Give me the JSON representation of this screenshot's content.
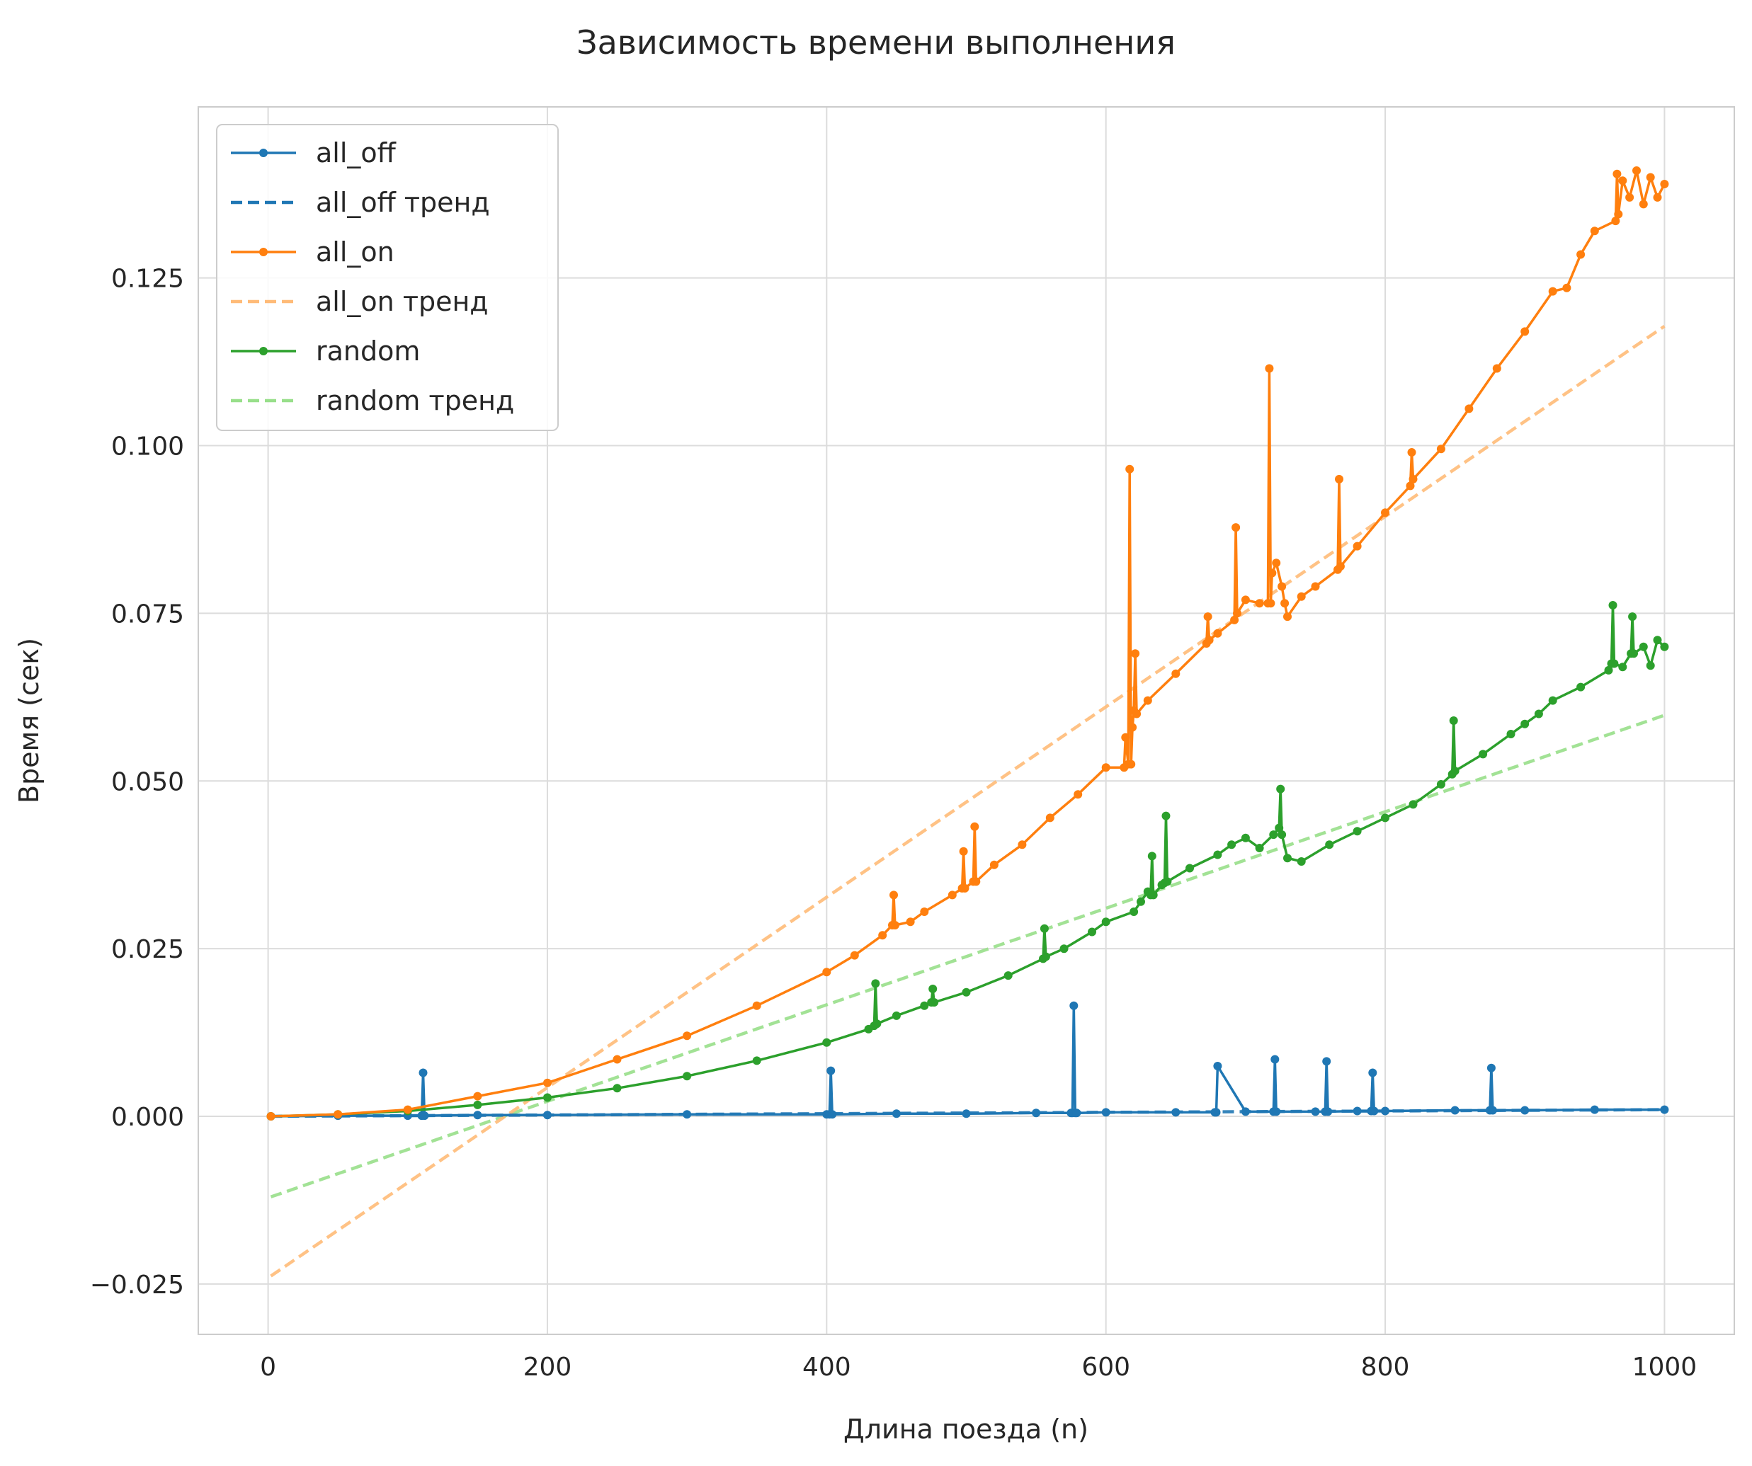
{
  "chart_data": {
    "type": "line",
    "title": "Зависимость времени выполнения",
    "xlabel": "Длина поезда (n)",
    "ylabel": "Время (сек)",
    "xlim": [
      -50,
      1050
    ],
    "ylim": [
      -0.0325,
      0.1505
    ],
    "xticks": [
      0,
      200,
      400,
      600,
      800,
      1000
    ],
    "xtick_labels": [
      "0",
      "200",
      "400",
      "600",
      "800",
      "1000"
    ],
    "yticks": [
      -0.025,
      0,
      0.025,
      0.05,
      0.075,
      0.1,
      0.125
    ],
    "ytick_labels": [
      "−0.025",
      "0.000",
      "0.025",
      "0.050",
      "0.075",
      "0.100",
      "0.125"
    ],
    "grid": true,
    "legend_position": "upper-left",
    "legend": [
      "all_off",
      "all_off тренд",
      "all_on",
      "all_on тренд",
      "random",
      "random тренд"
    ],
    "series": [
      {
        "name": "all_off",
        "color": "#1f77b4",
        "style": "line-marker",
        "x": [
          2,
          50,
          100,
          110,
          111,
          112,
          150,
          200,
          300,
          400,
          402,
          403,
          404,
          450,
          500,
          550,
          575,
          576,
          577,
          578,
          579,
          600,
          650,
          678,
          679,
          680,
          700,
          720,
          721,
          722,
          750,
          757,
          758,
          759,
          780,
          790,
          791,
          792,
          800,
          850,
          875,
          876,
          877,
          900,
          950,
          1000
        ],
        "y": [
          0.0,
          0.0001,
          0.0001,
          0.0001,
          0.0065,
          0.0001,
          0.0002,
          0.0002,
          0.0003,
          0.0003,
          0.0003,
          0.0068,
          0.0003,
          0.0004,
          0.0004,
          0.0005,
          0.0005,
          0.0005,
          0.0165,
          0.0005,
          0.0005,
          0.0006,
          0.0006,
          0.0006,
          0.0006,
          0.0075,
          0.0007,
          0.0007,
          0.0085,
          0.0007,
          0.0007,
          0.0007,
          0.0082,
          0.0007,
          0.0008,
          0.0008,
          0.0065,
          0.0008,
          0.0008,
          0.0009,
          0.0009,
          0.0072,
          0.0009,
          0.0009,
          0.001,
          0.001
        ]
      },
      {
        "name": "all_off тренд",
        "color": "#1f77b4",
        "style": "dashed",
        "x": [
          2,
          1000
        ],
        "y": [
          0.0,
          0.001
        ]
      },
      {
        "name": "all_on",
        "color": "#ff7f0e",
        "style": "line-marker",
        "x": [
          2,
          50,
          100,
          150,
          200,
          250,
          300,
          350,
          400,
          420,
          440,
          447,
          448,
          449,
          460,
          470,
          490,
          497,
          498,
          499,
          505,
          506,
          507,
          520,
          540,
          560,
          580,
          600,
          613,
          614,
          616,
          617,
          618,
          619,
          620,
          621,
          622,
          630,
          650,
          672,
          673,
          674,
          680,
          692,
          693,
          694,
          700,
          710,
          716,
          717,
          718,
          719,
          722,
          726,
          728,
          730,
          740,
          750,
          766,
          767,
          768,
          780,
          800,
          818,
          819,
          820,
          840,
          860,
          880,
          900,
          920,
          930,
          940,
          950,
          965,
          966,
          967,
          970,
          975,
          980,
          985,
          990,
          995,
          1000
        ],
        "y": [
          0.0,
          0.0003,
          0.001,
          0.003,
          0.005,
          0.0085,
          0.012,
          0.0165,
          0.0215,
          0.024,
          0.027,
          0.0285,
          0.033,
          0.0285,
          0.029,
          0.0305,
          0.033,
          0.034,
          0.0395,
          0.034,
          0.035,
          0.0432,
          0.035,
          0.0375,
          0.0405,
          0.0445,
          0.048,
          0.052,
          0.052,
          0.0565,
          0.0525,
          0.0965,
          0.0525,
          0.058,
          0.0605,
          0.069,
          0.06,
          0.062,
          0.066,
          0.0705,
          0.0745,
          0.071,
          0.072,
          0.074,
          0.0878,
          0.075,
          0.077,
          0.0765,
          0.0765,
          0.1115,
          0.0765,
          0.081,
          0.0825,
          0.079,
          0.0765,
          0.0745,
          0.0775,
          0.079,
          0.0815,
          0.095,
          0.082,
          0.085,
          0.09,
          0.094,
          0.099,
          0.095,
          0.0995,
          0.1055,
          0.1115,
          0.117,
          0.123,
          0.1235,
          0.1285,
          0.132,
          0.1335,
          0.1405,
          0.1345,
          0.1395,
          0.137,
          0.141,
          0.136,
          0.14,
          0.137,
          0.139
        ]
      },
      {
        "name": "all_on тренд",
        "color": "#ffbb78",
        "style": "dashed",
        "x": [
          2,
          1000
        ],
        "y": [
          -0.0238,
          0.1178
        ]
      },
      {
        "name": "random",
        "color": "#2ca02c",
        "style": "line-marker",
        "x": [
          2,
          50,
          100,
          150,
          200,
          250,
          300,
          350,
          400,
          430,
          434,
          435,
          436,
          450,
          470,
          475,
          476,
          477,
          500,
          530,
          555,
          556,
          557,
          570,
          590,
          600,
          620,
          625,
          630,
          632,
          633,
          634,
          640,
          642,
          643,
          644,
          660,
          680,
          690,
          700,
          710,
          720,
          724,
          725,
          726,
          730,
          740,
          760,
          780,
          800,
          820,
          840,
          848,
          849,
          850,
          870,
          890,
          900,
          910,
          920,
          940,
          960,
          962,
          963,
          964,
          970,
          976,
          977,
          978,
          985,
          990,
          995,
          1000
        ],
        "y": [
          0.0,
          0.0003,
          0.0008,
          0.0017,
          0.0028,
          0.0042,
          0.006,
          0.0083,
          0.011,
          0.013,
          0.0135,
          0.0198,
          0.0138,
          0.015,
          0.0165,
          0.017,
          0.019,
          0.017,
          0.0185,
          0.021,
          0.0235,
          0.028,
          0.0238,
          0.025,
          0.0275,
          0.029,
          0.0305,
          0.032,
          0.0335,
          0.033,
          0.0388,
          0.033,
          0.0345,
          0.0348,
          0.0448,
          0.035,
          0.037,
          0.039,
          0.0405,
          0.0415,
          0.04,
          0.042,
          0.043,
          0.0488,
          0.042,
          0.0385,
          0.038,
          0.0405,
          0.0425,
          0.0445,
          0.0465,
          0.0495,
          0.051,
          0.059,
          0.0515,
          0.054,
          0.057,
          0.0585,
          0.06,
          0.062,
          0.064,
          0.0665,
          0.0675,
          0.0762,
          0.0675,
          0.067,
          0.069,
          0.0745,
          0.069,
          0.07,
          0.0672,
          0.071,
          0.07
        ]
      },
      {
        "name": "random тренд",
        "color": "#98df8a",
        "style": "dashed",
        "x": [
          2,
          1000
        ],
        "y": [
          -0.012,
          0.0598
        ]
      }
    ]
  }
}
